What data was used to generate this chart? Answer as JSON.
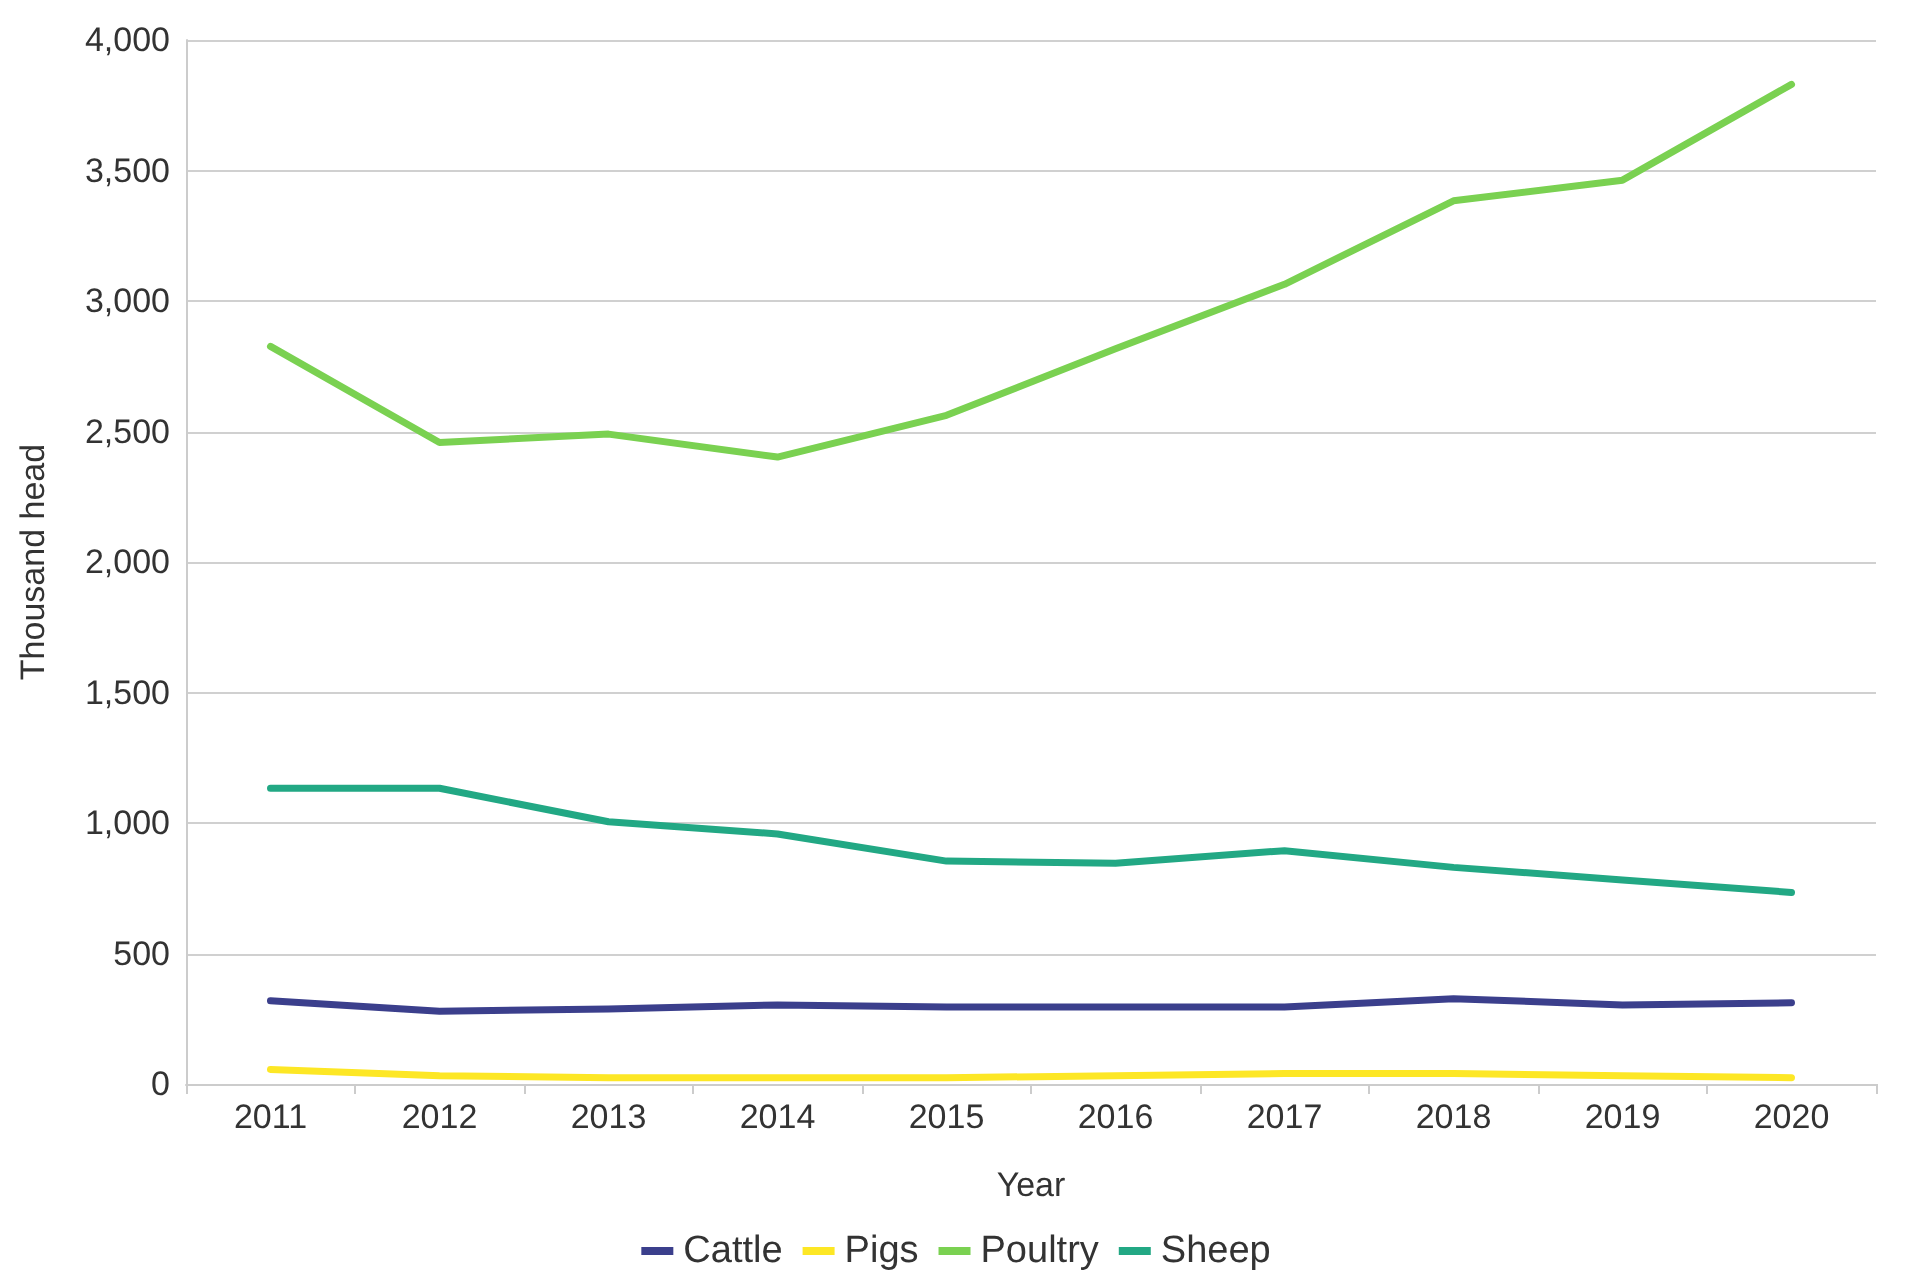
{
  "chart_data": {
    "type": "line",
    "xlabel": "Year",
    "ylabel": "Thousand head",
    "categories": [
      "2011",
      "2012",
      "2013",
      "2014",
      "2015",
      "2016",
      "2017",
      "2018",
      "2019",
      "2020"
    ],
    "series": [
      {
        "name": "Cattle",
        "color": "#3b3f8c",
        "values": [
          319,
          279,
          287,
          303,
          295,
          295,
          295,
          327,
          303,
          311
        ]
      },
      {
        "name": "Pigs",
        "color": "#fde725",
        "values": [
          56,
          32,
          24,
          24,
          24,
          32,
          40,
          40,
          32,
          24
        ]
      },
      {
        "name": "Poultry",
        "color": "#7ad151",
        "values": [
          2826,
          2458,
          2490,
          2402,
          2562,
          2817,
          3064,
          3384,
          3463,
          3830
        ]
      },
      {
        "name": "Sheep",
        "color": "#22a884",
        "values": [
          1133,
          1133,
          1005,
          958,
          854,
          846,
          894,
          830,
          782,
          734
        ]
      }
    ],
    "ylim": [
      0,
      4000
    ],
    "yticks": [
      0,
      500,
      {
        "value": 1000,
        "label": "1,000"
      },
      {
        "value": 1500,
        "label": "1,500"
      },
      {
        "value": 2000,
        "label": "2,000"
      },
      {
        "value": 2500,
        "label": "2,500"
      },
      {
        "value": 3000,
        "label": "3,000"
      },
      {
        "value": 3500,
        "label": "3,500"
      },
      {
        "value": 4000,
        "label": "4,000"
      }
    ],
    "grid": "y",
    "legend": "bottom",
    "marker": "none",
    "line_style": "solid"
  }
}
